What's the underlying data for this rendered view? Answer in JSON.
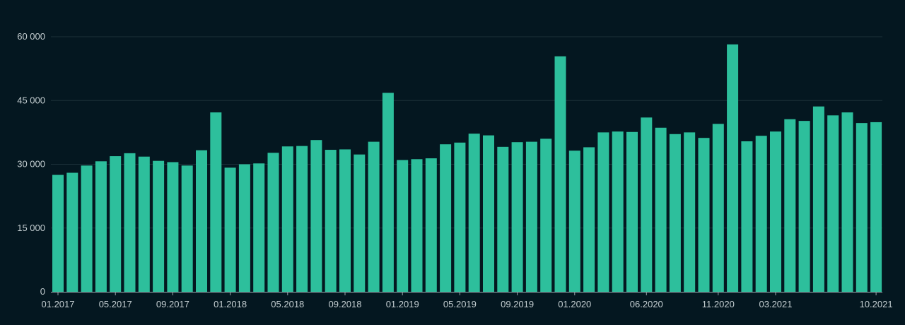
{
  "chart_data": {
    "type": "bar",
    "title": "",
    "xlabel": "",
    "ylabel": "",
    "ylim": [
      0,
      60000
    ],
    "grid": true,
    "legend": "none",
    "y_ticks": [
      {
        "value": 0,
        "label": "0"
      },
      {
        "value": 15000,
        "label": "15 000"
      },
      {
        "value": 30000,
        "label": "30 000"
      },
      {
        "value": 45000,
        "label": "45 000"
      },
      {
        "value": 60000,
        "label": "60 000"
      }
    ],
    "categories": [
      "01.2017",
      "02.2017",
      "03.2017",
      "04.2017",
      "05.2017",
      "06.2017",
      "07.2017",
      "08.2017",
      "09.2017",
      "10.2017",
      "11.2017",
      "12.2017",
      "01.2018",
      "02.2018",
      "03.2018",
      "04.2018",
      "05.2018",
      "06.2018",
      "07.2018",
      "08.2018",
      "09.2018",
      "10.2018",
      "11.2018",
      "12.2018",
      "01.2019",
      "02.2019",
      "03.2019",
      "04.2019",
      "05.2019",
      "06.2019",
      "07.2019",
      "08.2019",
      "09.2019",
      "10.2019",
      "11.2019",
      "12.2019",
      "01.2020",
      "02.2020",
      "03.2020",
      "04.2020",
      "05.2020",
      "06.2020",
      "07.2020",
      "08.2020",
      "09.2020",
      "10.2020",
      "11.2020",
      "12.2020",
      "01.2021",
      "02.2021",
      "03.2021",
      "04.2021",
      "05.2021",
      "06.2021",
      "07.2021",
      "08.2021",
      "09.2021",
      "10.2021"
    ],
    "values": [
      27500,
      28000,
      29700,
      30700,
      31900,
      32600,
      31800,
      30800,
      30500,
      29700,
      33300,
      42200,
      29200,
      30000,
      30200,
      32700,
      34200,
      34300,
      35700,
      33400,
      33500,
      32300,
      35300,
      46800,
      31000,
      31200,
      31400,
      34700,
      35100,
      37200,
      36800,
      34100,
      35200,
      35300,
      36000,
      55400,
      33200,
      34000,
      37500,
      37700,
      37600,
      41000,
      38600,
      37100,
      37500,
      36200,
      39500,
      58200,
      35400,
      36700,
      37700,
      40600,
      40200,
      43600,
      41500,
      42200,
      39700,
      39900
    ],
    "x_tick_labels": [
      {
        "index": 0,
        "label": "01.2017"
      },
      {
        "index": 4,
        "label": "05.2017"
      },
      {
        "index": 8,
        "label": "09.2017"
      },
      {
        "index": 12,
        "label": "01.2018"
      },
      {
        "index": 16,
        "label": "05.2018"
      },
      {
        "index": 20,
        "label": "09.2018"
      },
      {
        "index": 24,
        "label": "01.2019"
      },
      {
        "index": 28,
        "label": "05.2019"
      },
      {
        "index": 32,
        "label": "09.2019"
      },
      {
        "index": 36,
        "label": "01.2020"
      },
      {
        "index": 41,
        "label": "06.2020"
      },
      {
        "index": 46,
        "label": "11.2020"
      },
      {
        "index": 50,
        "label": "03.2021"
      },
      {
        "index": 57,
        "label": "10.2021"
      }
    ],
    "colors": {
      "background": "#041720",
      "bar": "#2dbf9c",
      "grid": "#1c3139",
      "text": "#c4ced1"
    }
  }
}
